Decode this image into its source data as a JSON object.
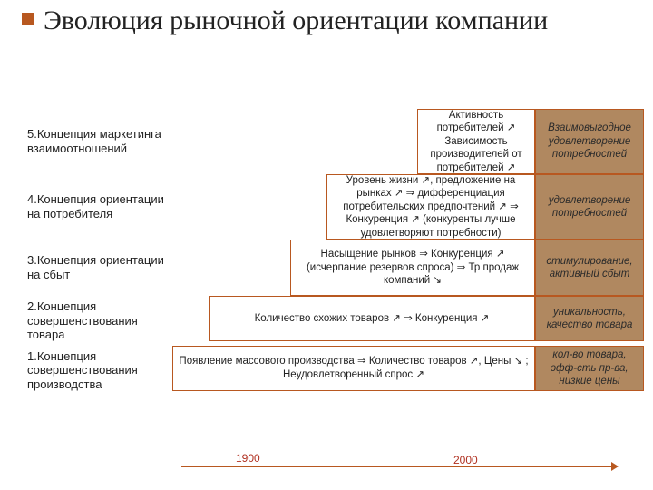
{
  "title": "Эволюция рыночной ориентации компании",
  "colors": {
    "accent": "#b85820",
    "box_bg": "#b08860",
    "text": "#222222",
    "year": "#b03020"
  },
  "typography": {
    "title_fontsize": 30,
    "title_family": "Times New Roman",
    "body_fontsize": 12
  },
  "rows": [
    {
      "label": "5.Концепция маркетинга взаимоотношений",
      "mid": "Активность потребителей ↗ Зависимость производителей от потребителей ↗",
      "right": "Взаимовыгодное удовлетворение потребностей",
      "spacer_w": 270,
      "mid_w": 130,
      "h": 72
    },
    {
      "label": "4.Концепция ориентации на потребителя",
      "mid": "Уровень жизни ↗, предложение на рынках ↗ ⇒ дифференциация потребительских предпочтений ↗ ⇒ Конкуренция ↗ (конкуренты лучше удовлетворяют потребности)",
      "right": "удовлетво­рение потребностей",
      "spacer_w": 170,
      "mid_w": 230,
      "h": 72
    },
    {
      "label": "3.Концепция ориентации на сбыт",
      "mid": "Насыщение рынков ⇒ Конкуренция ↗ (исчерпание резервов спроса) ⇒ Тр продаж компаний ↘",
      "right": "стимули­рование, активный сбыт",
      "spacer_w": 130,
      "mid_w": 270,
      "h": 62
    },
    {
      "label": "2.Концепция совершенствования товара",
      "mid": "Количество схожих товаров ↗ ⇒ Конкуренция ↗",
      "right": "уникальность, качество товара",
      "spacer_w": 40,
      "mid_w": 360,
      "h": 50
    },
    {
      "label": "1.Концепция совершенствования производства",
      "mid": "Появление массового производства ⇒ Количество товаров ↗, Цены ↘ ; Неудовлетворенный спрос ↗",
      "right": "кол-во товара, эфф-сть пр-ва, низкие цены",
      "spacer_w": 0,
      "mid_w": 400,
      "h": 50
    }
  ],
  "timeline": {
    "y1900": "1900",
    "y2000": "2000"
  }
}
